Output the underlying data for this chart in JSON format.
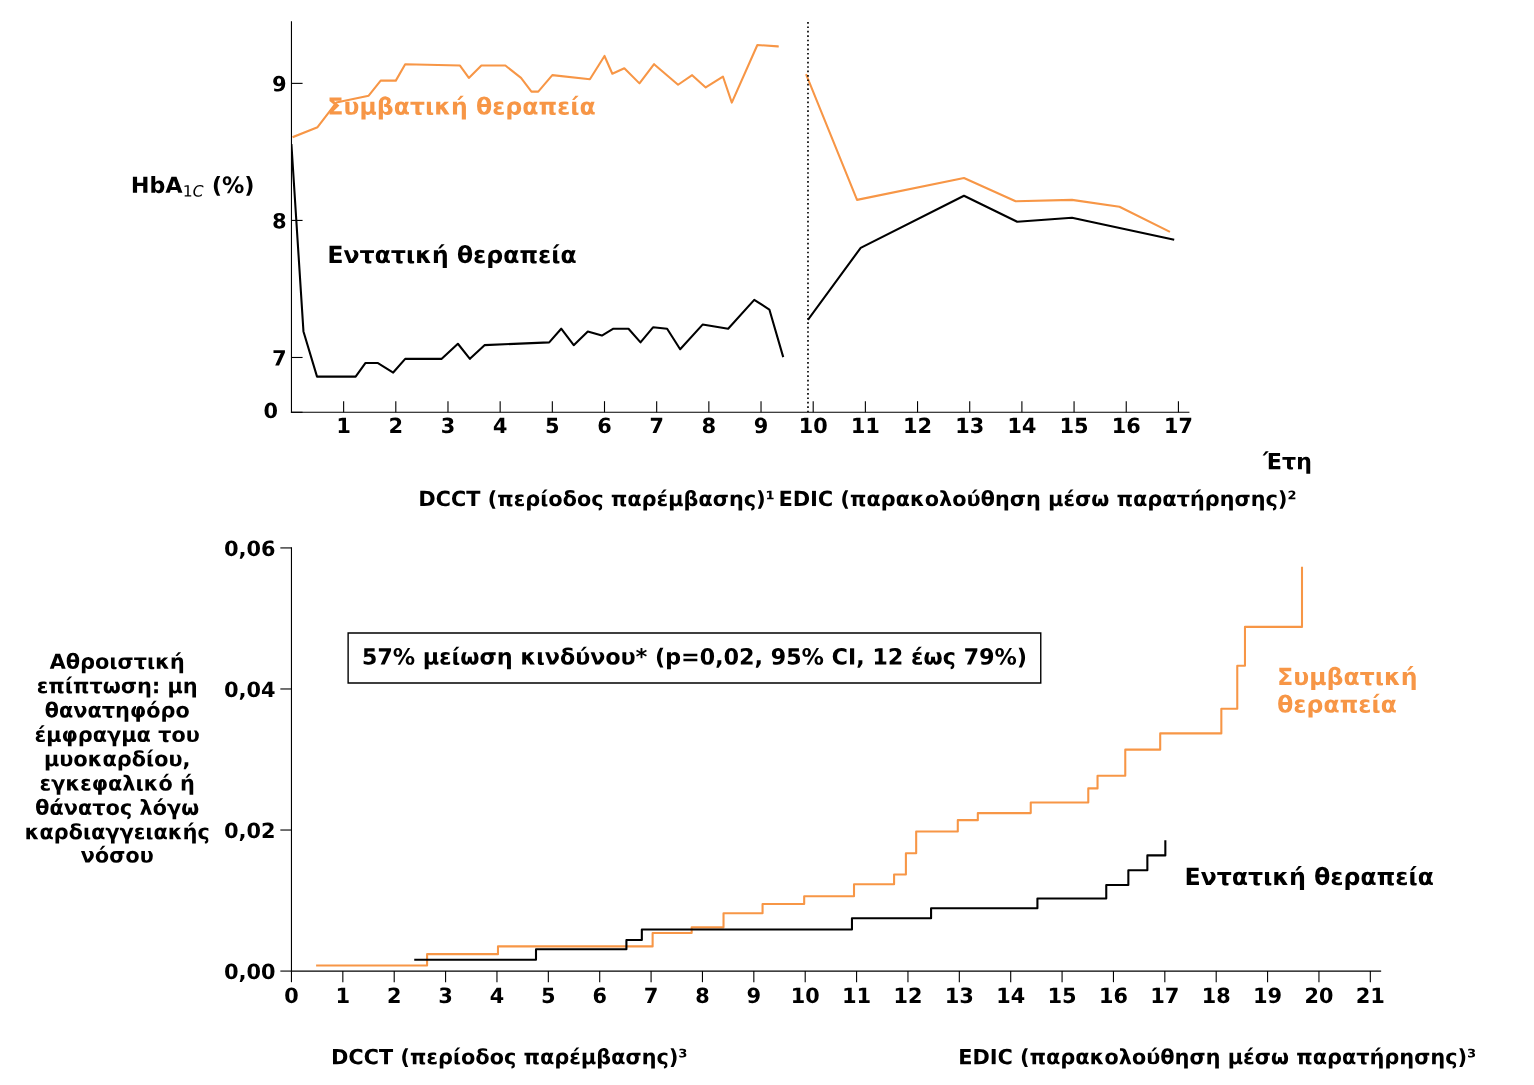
{
  "chart_data": [
    {
      "type": "line",
      "ylabel": "HbA$_{1C}$ (%)",
      "xlabel": "Έτη",
      "xlim": [
        0,
        17.2
      ],
      "xticks": [
        1,
        2,
        3,
        4,
        5,
        6,
        7,
        8,
        9,
        10,
        11,
        12,
        13,
        14,
        15,
        16,
        17
      ],
      "ylim": [
        6.6,
        9.45
      ],
      "yticks": [
        {
          "value": 6.6,
          "label": null
        },
        7,
        8,
        9
      ],
      "grid": false,
      "marker": "none",
      "line_style": "solid",
      "ref_lines": [
        {
          "axis": "x",
          "value": 9.9,
          "label": null,
          "color": "#000000",
          "line_style": "dotted"
        }
      ],
      "annotations": [
        "DCCT (περίοδος παρέμβασης)¹",
        "EDIC (παρακολούθηση μέσω παρατήρησης)²",
        "0"
      ],
      "series": [
        {
          "name": "Συμβατική θεραπεία",
          "color": "#f79646",
          "x": [
            0.04,
            0.5,
            0.86,
            1.48,
            1.71,
            2.0,
            2.18,
            3.23,
            3.4,
            3.64,
            4.1,
            4.4,
            4.6,
            4.73,
            5.0,
            5.72,
            6.0,
            6.15,
            6.38,
            6.67,
            6.95,
            7.41,
            7.68,
            7.94,
            8.27,
            8.44,
            8.93,
            9.32,
            9.6,
            9.87,
            10.84,
            12.89,
            13.88,
            14.96,
            15.87,
            16.82
          ],
          "values": [
            8.61,
            8.68,
            8.86,
            8.91,
            9.02,
            9.02,
            9.14,
            9.13,
            9.04,
            9.13,
            9.13,
            9.04,
            8.94,
            8.94,
            9.06,
            9.03,
            9.2,
            9.07,
            9.11,
            9.0,
            9.14,
            8.99,
            9.06,
            8.97,
            9.05,
            8.86,
            9.28,
            9.27,
            null,
            9.06,
            8.15,
            8.31,
            8.14,
            8.15,
            8.1,
            7.92
          ]
        },
        {
          "name": "Εντατική θεραπεία",
          "color": "#000000",
          "x": [
            0.0,
            0.23,
            0.49,
            1.23,
            1.42,
            1.65,
            1.95,
            2.18,
            2.88,
            3.19,
            3.42,
            3.7,
            4.94,
            5.17,
            5.41,
            5.68,
            5.95,
            6.17,
            6.46,
            6.69,
            6.93,
            7.2,
            7.45,
            7.88,
            8.37,
            8.87,
            9.16,
            9.42,
            9.6,
            9.91,
            10.91,
            12.89,
            13.91,
            14.96,
            16.9
          ],
          "values": [
            8.55,
            7.19,
            6.86,
            6.86,
            6.96,
            6.96,
            6.89,
            6.99,
            6.99,
            7.1,
            6.99,
            7.09,
            7.11,
            7.21,
            7.09,
            7.19,
            7.16,
            7.21,
            7.21,
            7.11,
            7.22,
            7.21,
            7.06,
            7.24,
            7.21,
            7.42,
            7.35,
            7.01,
            null,
            7.28,
            7.8,
            8.18,
            7.99,
            8.02,
            7.86
          ]
        }
      ]
    },
    {
      "type": "step",
      "ylabel": "Αθροιστική επίπτωση: μη θανατηφόρο έμφραγμα του μυοκαρδίου, εγκεφαλικό ή θάνατος λόγω καρδιαγγειακής νόσου",
      "xlim": [
        0,
        21.2
      ],
      "xticks": [
        0,
        1,
        2,
        3,
        4,
        5,
        6,
        7,
        8,
        9,
        10,
        11,
        12,
        13,
        14,
        15,
        16,
        17,
        18,
        19,
        20,
        21
      ],
      "ylim": [
        0,
        0.06
      ],
      "yticks": [
        {
          "value": 0,
          "label": "0,00"
        },
        {
          "value": 0.02,
          "label": "0,02"
        },
        {
          "value": 0.04,
          "label": "0,04"
        },
        {
          "value": 0.06,
          "label": "0,06"
        }
      ],
      "grid": false,
      "marker": "none",
      "line_style": "solid",
      "annotations": [
        "57% μείωση κινδύνου* (p=0,02, 95% CI, 12 έως 79%)",
        "DCCT (περίοδος παρέμβασης)³",
        "EDIC (παρακολούθηση μέσω παρατήρησης)³"
      ],
      "series": [
        {
          "name": "Συμβατική θεραπεία",
          "color": "#f79646",
          "x": [
            0.5,
            2.64,
            4.02,
            7.03,
            7.79,
            8.41,
            9.17,
            9.98,
            10.95,
            11.73,
            11.96,
            12.16,
            12.97,
            13.36,
            14.39,
            15.51,
            15.69,
            16.23,
            16.91,
            18.1,
            18.41,
            18.56,
            19.67
          ],
          "values": [
            0.0008,
            0.0024,
            0.0035,
            0.0054,
            0.0062,
            0.0082,
            0.0095,
            0.0106,
            0.0123,
            0.0137,
            0.0167,
            0.0198,
            0.0214,
            0.0224,
            0.0239,
            0.0259,
            0.0277,
            0.0314,
            0.0337,
            0.0372,
            0.0433,
            0.0488,
            0.0572
          ]
        },
        {
          "name": "Εντατική θεραπεία",
          "color": "#000000",
          "x": [
            2.41,
            4.76,
            6.52,
            6.82,
            10.91,
            12.45,
            14.52,
            15.86,
            16.29,
            16.66,
            17.01
          ],
          "values": [
            0.0016,
            0.0031,
            0.0044,
            0.0059,
            0.0075,
            0.0089,
            0.0103,
            0.0122,
            0.0143,
            0.0164,
            0.0184
          ]
        }
      ]
    }
  ]
}
